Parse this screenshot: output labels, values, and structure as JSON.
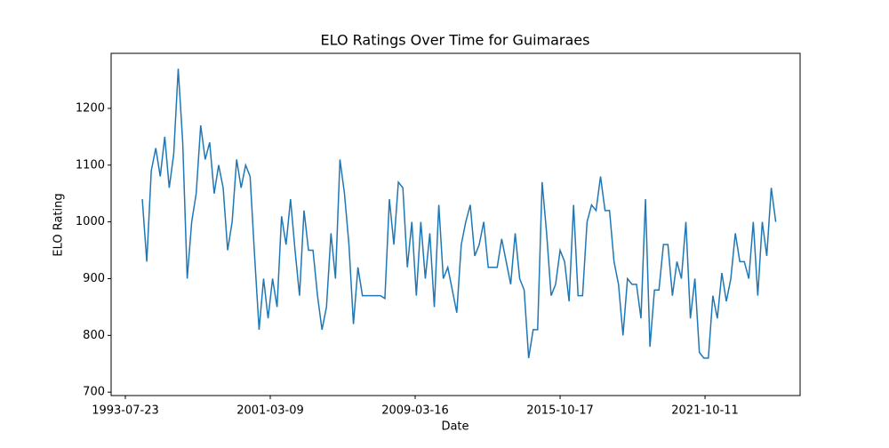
{
  "chart_data": {
    "type": "line",
    "title": "ELO Ratings Over Time for Guimaraes",
    "x_label": "Date",
    "y_label": "ELO Rating",
    "x": [
      117,
      148,
      179,
      210,
      241,
      272,
      303,
      334,
      365,
      396,
      427,
      458,
      489,
      520,
      551,
      582,
      613,
      644,
      675,
      706,
      737,
      768,
      799,
      830,
      861,
      892,
      923,
      954,
      985,
      1016,
      1047,
      1078,
      1109,
      1140,
      1171,
      1202,
      1233,
      1264,
      1295,
      1326,
      1357,
      1388,
      1419,
      1450,
      1481,
      1512,
      1543,
      1574,
      1605,
      1636,
      1667,
      1698,
      1729,
      1760,
      1791,
      1822,
      1853,
      1884,
      1915,
      1946,
      1977,
      2008,
      2039,
      2070,
      2101,
      2132,
      2163,
      2194,
      2225,
      2256,
      2287,
      2318,
      2349,
      2380,
      2411,
      2442,
      2473,
      2504,
      2535,
      2566,
      2597,
      2628,
      2659,
      2690,
      2721,
      2752,
      2783,
      2814,
      2845,
      2876,
      2907,
      2938,
      2969,
      3000,
      3031,
      3062,
      3093,
      3124,
      3155,
      3186,
      3217,
      3248,
      3279,
      3310,
      3341,
      3372,
      3403,
      3434,
      3465,
      3496,
      3527,
      3558,
      3589,
      3620,
      3651,
      3682,
      3713,
      3744,
      3775,
      3806,
      3837,
      3868,
      3899,
      3930,
      3961,
      3992,
      4023,
      4054,
      4085,
      4116,
      4147,
      4178,
      4209,
      4240,
      4271,
      4302,
      4333,
      4364,
      4395,
      4426,
      4457,
      4488
    ],
    "series": [
      {
        "name": "ELO Rating",
        "color": "#1f77b4",
        "values": [
          1040,
          930,
          1090,
          1130,
          1080,
          1150,
          1060,
          1120,
          1270,
          1140,
          900,
          1000,
          1050,
          1170,
          1110,
          1140,
          1050,
          1100,
          1060,
          950,
          1000,
          1110,
          1060,
          1100,
          1080,
          940,
          810,
          900,
          830,
          900,
          850,
          1010,
          960,
          1040,
          950,
          870,
          1020,
          950,
          950,
          870,
          810,
          850,
          980,
          900,
          1110,
          1050,
          960,
          820,
          920,
          870,
          870,
          870,
          870,
          870,
          865,
          1040,
          960,
          1070,
          1060,
          920,
          1000,
          870,
          1000,
          900,
          980,
          850,
          1030,
          900,
          920,
          880,
          840,
          960,
          1000,
          1030,
          940,
          960,
          1000,
          920,
          920,
          920,
          970,
          930,
          890,
          980,
          900,
          880,
          760,
          810,
          810,
          1070,
          980,
          870,
          890,
          950,
          930,
          860,
          1030,
          870,
          870,
          1000,
          1030,
          1020,
          1080,
          1020,
          1020,
          930,
          890,
          800,
          900,
          890,
          890,
          830,
          1040,
          780,
          880,
          880,
          960,
          960,
          870,
          930,
          900,
          1000,
          830,
          900,
          770,
          760,
          760,
          870,
          830,
          910,
          860,
          900,
          980,
          930,
          930,
          900,
          1000,
          870,
          1000,
          940,
          1060,
          1000
        ]
      }
    ],
    "xlim": [
      -98,
      4656
    ],
    "ylim": [
      694,
      1297
    ],
    "xticks": [
      {
        "value": 0,
        "label": "1993-07-23"
      },
      {
        "value": 1000,
        "label": "2001-03-09"
      },
      {
        "value": 2000,
        "label": "2009-03-16"
      },
      {
        "value": 3000,
        "label": "2015-10-17"
      },
      {
        "value": 4000,
        "label": "2021-10-11"
      }
    ],
    "yticks": [
      700,
      800,
      900,
      1000,
      1100,
      1200
    ]
  }
}
